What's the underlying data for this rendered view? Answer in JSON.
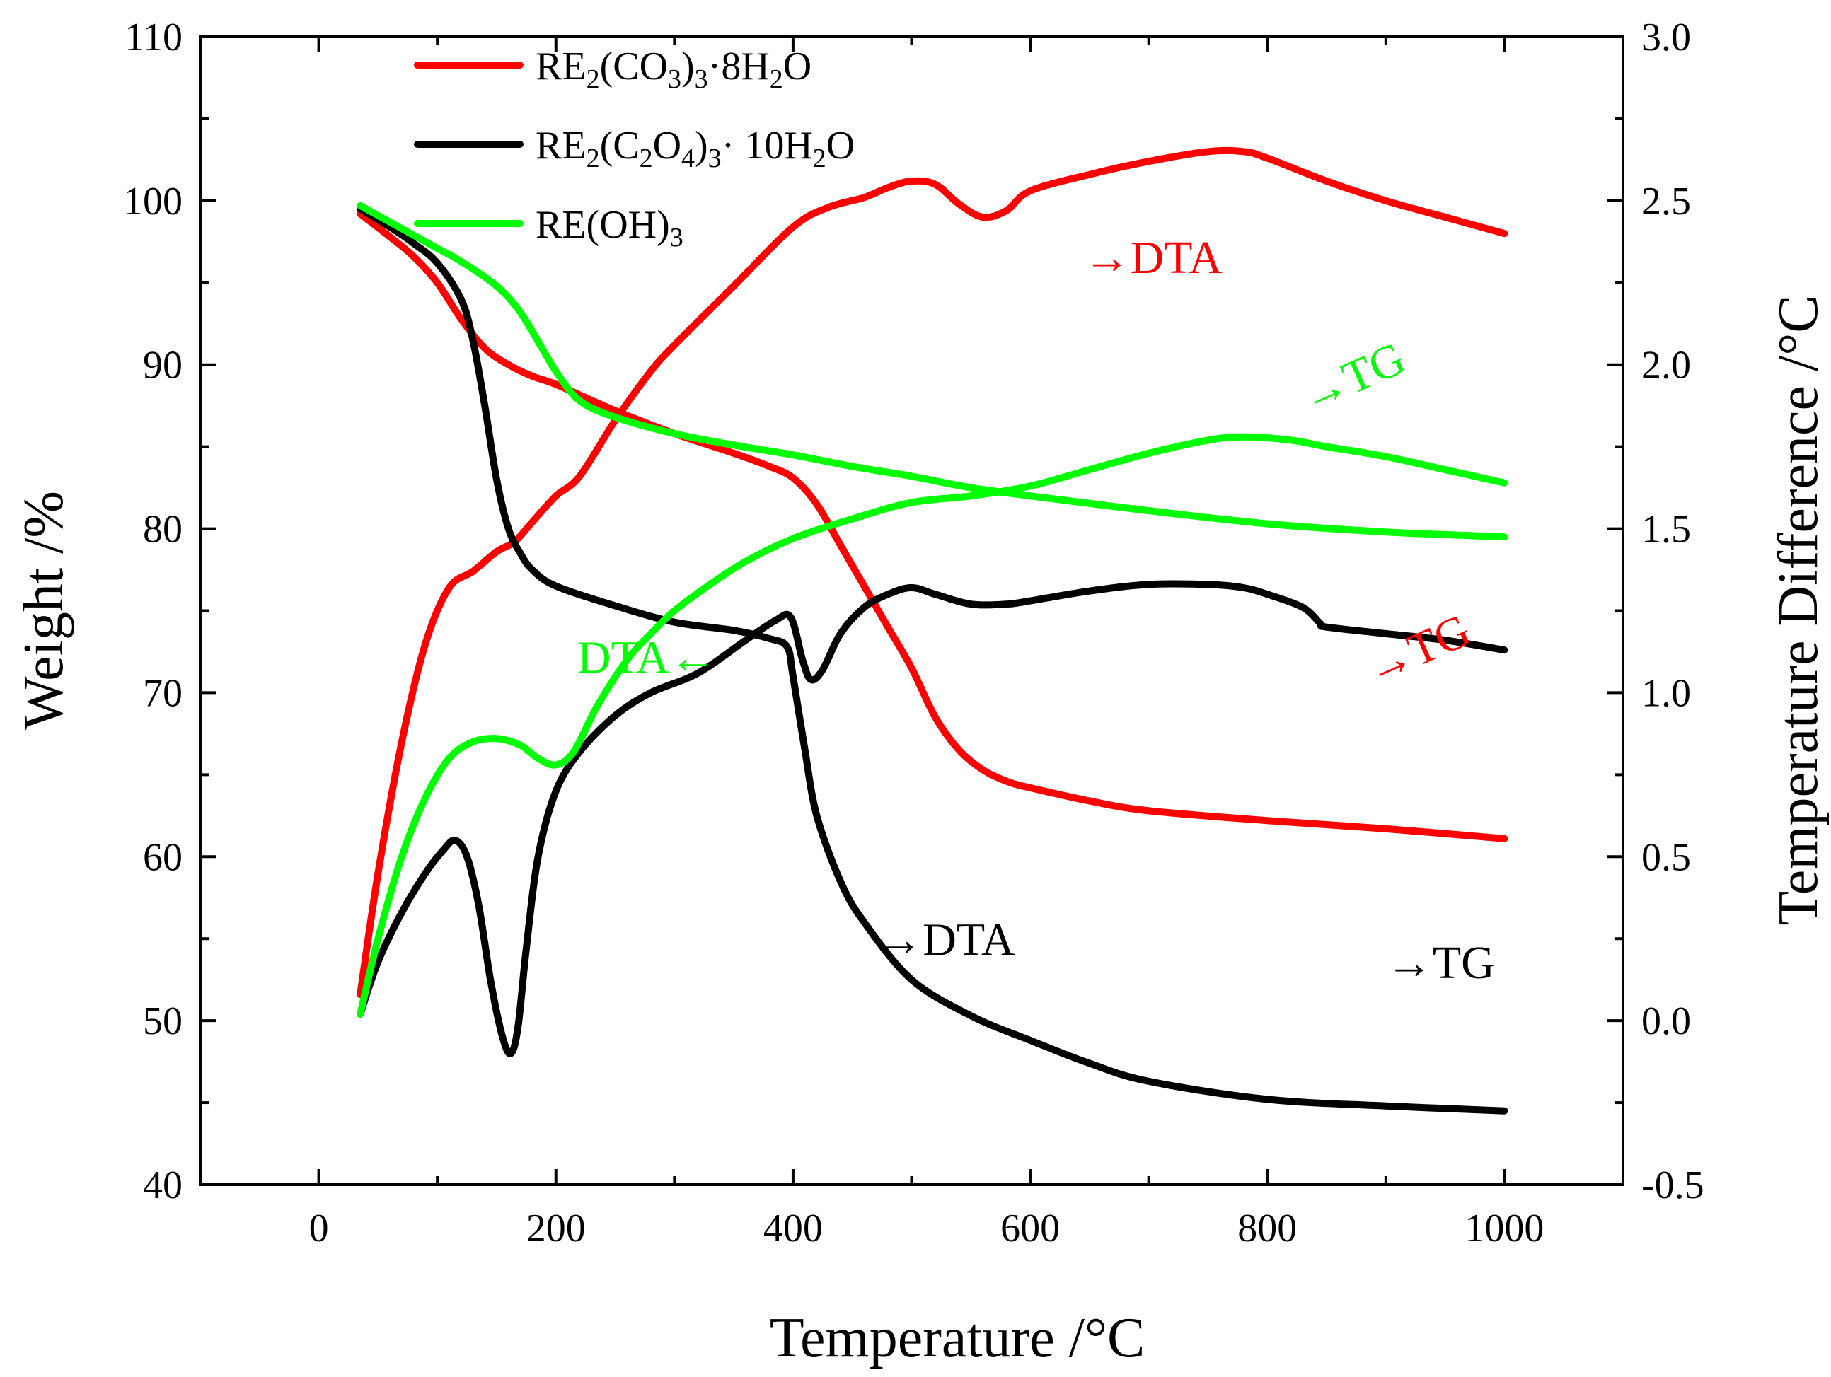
{
  "chart_data": {
    "type": "line",
    "xlabel": "Temperature /°C",
    "ylabel_left": "Weight /%",
    "ylabel_right": "Temperature Difference /°C",
    "xlim": [
      -100,
      1100
    ],
    "ylim_left": [
      40,
      110
    ],
    "ylim_right": [
      -0.5,
      3.0
    ],
    "xticks": [
      0,
      200,
      400,
      600,
      800,
      1000
    ],
    "xtick_labels": [
      "0",
      "200",
      "400",
      "600",
      "800",
      "1000"
    ],
    "yticks_left": [
      40,
      50,
      60,
      70,
      80,
      90,
      100,
      110
    ],
    "ytick_labels_left": [
      "40",
      "50",
      "60",
      "70",
      "80",
      "90",
      "100",
      "110"
    ],
    "yticks_right": [
      -0.5,
      0.0,
      0.5,
      1.0,
      1.5,
      2.0,
      2.5,
      3.0
    ],
    "ytick_labels_right": [
      "-0.5",
      "0.0",
      "0.5",
      "1.0",
      "1.5",
      "2.0",
      "2.5",
      "3.0"
    ],
    "grid": false,
    "legend_position": "top-left",
    "legend": [
      {
        "key": "carbonate",
        "color": "#ff0000",
        "parts": [
          [
            "RE",
            "n"
          ],
          [
            "2",
            "sub"
          ],
          [
            "(CO",
            "n"
          ],
          [
            "3",
            "sub"
          ],
          [
            ")",
            "n"
          ],
          [
            "3",
            "sub"
          ],
          [
            "·8H",
            "n"
          ],
          [
            "2",
            "sub"
          ],
          [
            "O",
            "n"
          ]
        ]
      },
      {
        "key": "oxalate",
        "color": "#000000",
        "parts": [
          [
            "RE",
            "n"
          ],
          [
            "2",
            "sub"
          ],
          [
            "(C",
            "n"
          ],
          [
            "2",
            "sub"
          ],
          [
            "O",
            "n"
          ],
          [
            "4",
            "sub"
          ],
          [
            ")",
            "n"
          ],
          [
            "3",
            "sub"
          ],
          [
            "· 10H",
            "n"
          ],
          [
            "2",
            "sub"
          ],
          [
            "O",
            "n"
          ]
        ]
      },
      {
        "key": "hydroxide",
        "color": "#00ff00",
        "parts": [
          [
            "RE(OH)",
            "n"
          ],
          [
            "3",
            "sub"
          ]
        ]
      }
    ],
    "series": [
      {
        "key": "carbonate-tg",
        "color": "#ff0000",
        "axis": "left",
        "x": [
          35,
          60,
          80,
          100,
          120,
          140,
          160,
          180,
          200,
          250,
          300,
          350,
          380,
          400,
          420,
          440,
          460,
          480,
          500,
          520,
          540,
          560,
          580,
          600,
          650,
          700,
          800,
          900,
          1000
        ],
        "y": [
          99.2,
          97.8,
          96.6,
          95.0,
          92.8,
          91.0,
          90.0,
          89.3,
          88.8,
          87.2,
          85.8,
          84.6,
          83.8,
          83.1,
          81.5,
          79.0,
          76.5,
          74.0,
          71.5,
          68.5,
          66.5,
          65.3,
          64.6,
          64.2,
          63.4,
          62.8,
          62.2,
          61.7,
          61.1
        ]
      },
      {
        "key": "carbonate-dta",
        "color": "#ff0000",
        "axis": "right",
        "x": [
          35,
          50,
          70,
          90,
          110,
          130,
          150,
          165,
          180,
          200,
          220,
          250,
          280,
          300,
          350,
          400,
          430,
          460,
          480,
          500,
          520,
          540,
          560,
          580,
          600,
          650,
          700,
          750,
          780,
          800,
          850,
          900,
          950,
          1000
        ],
        "y": [
          0.08,
          0.45,
          0.85,
          1.15,
          1.32,
          1.37,
          1.43,
          1.46,
          1.52,
          1.6,
          1.66,
          1.83,
          1.98,
          2.06,
          2.24,
          2.42,
          2.48,
          2.51,
          2.54,
          2.56,
          2.55,
          2.49,
          2.45,
          2.47,
          2.53,
          2.58,
          2.62,
          2.65,
          2.65,
          2.63,
          2.56,
          2.5,
          2.45,
          2.4
        ]
      },
      {
        "key": "oxalate-tg",
        "color": "#000000",
        "axis": "left",
        "x": [
          35,
          60,
          80,
          100,
          120,
          130,
          140,
          150,
          160,
          170,
          180,
          200,
          250,
          300,
          350,
          380,
          395,
          400,
          410,
          420,
          440,
          460,
          500,
          550,
          600,
          650,
          700,
          800,
          900,
          1000
        ],
        "y": [
          99.5,
          98.4,
          97.4,
          96.2,
          94.0,
          91.5,
          87.5,
          83.0,
          80.0,
          78.5,
          77.5,
          76.5,
          75.3,
          74.3,
          73.8,
          73.3,
          72.8,
          71.0,
          66.5,
          62.5,
          58.5,
          56.0,
          52.5,
          50.3,
          48.8,
          47.4,
          46.3,
          45.2,
          44.8,
          44.5
        ]
      },
      {
        "key": "oxalate-dta",
        "color": "#000000",
        "axis": "right",
        "x": [
          35,
          50,
          70,
          90,
          105,
          115,
          125,
          135,
          145,
          155,
          162,
          168,
          175,
          185,
          200,
          220,
          250,
          280,
          320,
          360,
          385,
          398,
          408,
          415,
          425,
          440,
          460,
          480,
          500,
          520,
          550,
          580,
          600,
          650,
          700,
          750,
          780,
          800,
          830,
          845,
          850,
          900,
          950,
          1000
        ],
        "y": [
          0.02,
          0.18,
          0.33,
          0.45,
          0.52,
          0.55,
          0.5,
          0.35,
          0.12,
          -0.05,
          -0.1,
          -0.02,
          0.22,
          0.5,
          0.7,
          0.82,
          0.93,
          1.0,
          1.06,
          1.16,
          1.22,
          1.23,
          1.1,
          1.04,
          1.07,
          1.18,
          1.26,
          1.3,
          1.32,
          1.3,
          1.27,
          1.27,
          1.28,
          1.31,
          1.33,
          1.33,
          1.32,
          1.3,
          1.26,
          1.21,
          1.2,
          1.18,
          1.16,
          1.13
        ]
      },
      {
        "key": "hydroxide-tg",
        "color": "#00ff00",
        "axis": "left",
        "x": [
          35,
          60,
          80,
          100,
          120,
          150,
          170,
          190,
          200,
          220,
          250,
          300,
          350,
          400,
          450,
          500,
          550,
          600,
          700,
          800,
          900,
          1000
        ],
        "y": [
          99.7,
          98.7,
          97.9,
          97.1,
          96.3,
          94.8,
          93.2,
          90.8,
          89.6,
          87.8,
          86.8,
          85.8,
          85.1,
          84.5,
          83.8,
          83.2,
          82.5,
          82.0,
          81.1,
          80.3,
          79.8,
          79.5
        ]
      },
      {
        "key": "hydroxide-dta",
        "color": "#00ff00",
        "axis": "right",
        "x": [
          35,
          50,
          70,
          90,
          110,
          130,
          150,
          170,
          185,
          200,
          215,
          235,
          260,
          280,
          300,
          330,
          360,
          400,
          450,
          500,
          550,
          600,
          650,
          700,
          750,
          780,
          820,
          850,
          900,
          950,
          1000
        ],
        "y": [
          0.02,
          0.25,
          0.5,
          0.68,
          0.8,
          0.85,
          0.86,
          0.84,
          0.8,
          0.78,
          0.82,
          0.96,
          1.1,
          1.18,
          1.25,
          1.33,
          1.4,
          1.47,
          1.53,
          1.58,
          1.6,
          1.63,
          1.68,
          1.73,
          1.77,
          1.78,
          1.77,
          1.75,
          1.72,
          1.68,
          1.64
        ]
      }
    ],
    "annotations": [
      {
        "key": "ann-carbonate-dta",
        "text": "→DTA",
        "color": "#ff0000",
        "x": 645,
        "y": 2.28,
        "axis": "right",
        "rotate": 0
      },
      {
        "key": "ann-carbonate-tg",
        "text": "→TG",
        "color": "#ff0000",
        "x": 890,
        "y": 1.02,
        "axis": "right",
        "rotate": -24
      },
      {
        "key": "ann-hydroxide-tg",
        "text": "→TG",
        "color": "#00ff00",
        "x": 835,
        "y": 1.85,
        "axis": "right",
        "rotate": -24
      },
      {
        "key": "ann-hydroxide-dta",
        "text": "DTA←",
        "color": "#00ff00",
        "x": 218,
        "y": 1.06,
        "axis": "right",
        "rotate": 0
      },
      {
        "key": "ann-oxalate-dta",
        "text": "→DTA",
        "color": "#000000",
        "x": 470,
        "y": 0.2,
        "axis": "right",
        "rotate": 0
      },
      {
        "key": "ann-oxalate-tg",
        "text": "→TG",
        "color": "#000000",
        "x": 900,
        "y": 0.13,
        "axis": "right",
        "rotate": 0
      }
    ]
  }
}
